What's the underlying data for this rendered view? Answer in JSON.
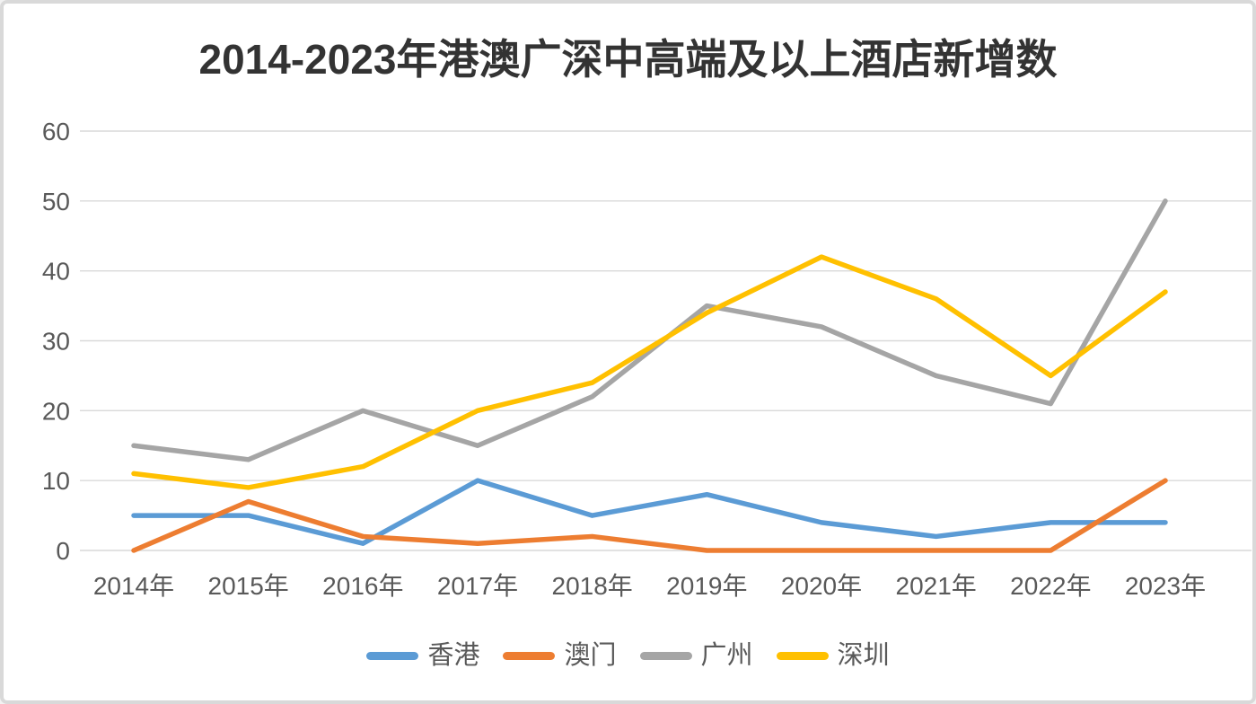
{
  "chart_data": {
    "type": "line",
    "title": "2014-2023年港澳广深中高端及以上酒店新增数",
    "categories": [
      "2014年",
      "2015年",
      "2016年",
      "2017年",
      "2018年",
      "2019年",
      "2020年",
      "2021年",
      "2022年",
      "2023年"
    ],
    "series": [
      {
        "name": "香港",
        "color": "#5B9BD5",
        "values": [
          5,
          5,
          1,
          10,
          5,
          8,
          4,
          2,
          4,
          4
        ]
      },
      {
        "name": "澳门",
        "color": "#ED7D31",
        "values": [
          0,
          7,
          2,
          1,
          2,
          0,
          0,
          0,
          0,
          10
        ]
      },
      {
        "name": "广州",
        "color": "#A5A5A5",
        "values": [
          15,
          13,
          20,
          15,
          22,
          35,
          32,
          25,
          21,
          50
        ]
      },
      {
        "name": "深圳",
        "color": "#FFC000",
        "values": [
          11,
          9,
          12,
          20,
          24,
          34,
          42,
          36,
          25,
          37
        ]
      }
    ],
    "ylim": [
      0,
      60
    ],
    "yticks": [
      "0",
      "10",
      "20",
      "30",
      "40",
      "50",
      "60"
    ],
    "grid": true,
    "legend_position": "bottom",
    "xlabel": "",
    "ylabel": ""
  },
  "colors": {
    "gridline": "#D9D9D9",
    "tick_label": "#595959",
    "title_text": "#333333",
    "background": "#FFFFFF",
    "card_border": "#D9D9D9"
  }
}
